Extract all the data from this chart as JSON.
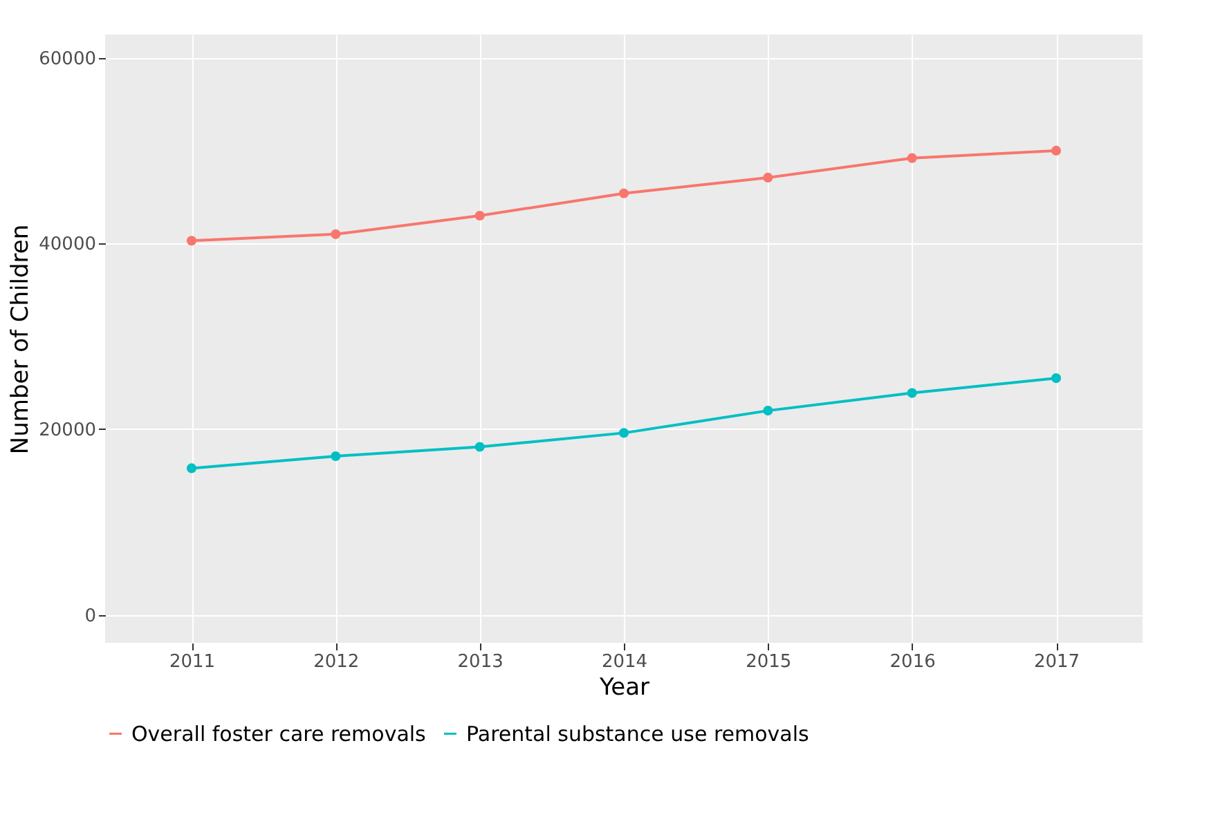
{
  "chart_data": {
    "type": "line",
    "xlabel": "Year",
    "ylabel": "Number of Children",
    "categories": [
      "2011",
      "2012",
      "2013",
      "2014",
      "2015",
      "2016",
      "2017"
    ],
    "series": [
      {
        "name": "Overall foster care removals",
        "color": "#f8766d",
        "values": [
          40300,
          41000,
          43000,
          45400,
          47100,
          49200,
          50000
        ]
      },
      {
        "name": "Parental substance use removals",
        "color": "#00bfc4",
        "values": [
          15800,
          17100,
          18100,
          19600,
          22000,
          23900,
          25500
        ]
      }
    ],
    "ylim": [
      -3000,
      62500
    ],
    "yticks": [
      0,
      20000,
      40000,
      60000
    ],
    "grid": true,
    "legend": "bottom",
    "marker": "circle",
    "line_style": "solid"
  }
}
